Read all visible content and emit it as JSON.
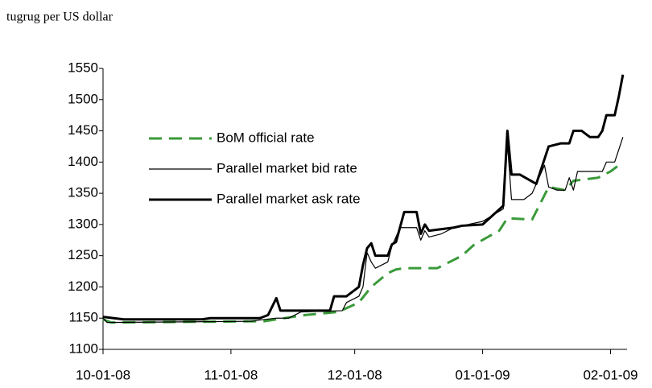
{
  "chart_data": {
    "type": "line",
    "title": "tugrug per US dollar",
    "xlim": [
      "10-01-08",
      "02-05-09"
    ],
    "xticks": [
      "10-01-08",
      "11-01-08",
      "12-01-08",
      "01-01-09",
      "02-01-09"
    ],
    "ylim": [
      1100,
      1550
    ],
    "yticks": [
      1100,
      1150,
      1200,
      1250,
      1300,
      1350,
      1400,
      1450,
      1500,
      1550
    ],
    "legend": "upper left",
    "series": [
      {
        "name": "BoM official rate",
        "color": "#3a9a3a",
        "dash": true,
        "width": 3,
        "x": [
          "10-01-08",
          "10-03-08",
          "11-09-08",
          "11-19-08",
          "11-27-08",
          "12-02-08",
          "12-05-08",
          "12-09-08",
          "12-11-08",
          "12-13-08",
          "12-21-08",
          "12-24-08",
          "12-27-08",
          "12-30-08",
          "01-05-09",
          "01-07-09",
          "01-13-09",
          "01-17-09",
          "01-21-09",
          "01-23-09",
          "01-29-09",
          "02-01-09",
          "02-04-09"
        ],
        "values": [
          1148,
          1143,
          1145,
          1155,
          1160,
          1175,
          1200,
          1222,
          1228,
          1230,
          1230,
          1240,
          1250,
          1268,
          1290,
          1310,
          1308,
          1360,
          1355,
          1370,
          1375,
          1385,
          1400
        ]
      },
      {
        "name": "Parallel market bid rate",
        "color": "#000000",
        "dash": false,
        "width": 1.2,
        "x": [
          "10-01-08",
          "10-02-08",
          "11-06-08",
          "11-08-08",
          "11-12-08",
          "11-15-08",
          "11-18-08",
          "11-28-08",
          "11-29-08",
          "12-02-08",
          "12-03-08",
          "12-04-08",
          "12-05-08",
          "12-06-08",
          "12-09-08",
          "12-10-08",
          "12-12-08",
          "12-16-08",
          "12-17-08",
          "12-18-08",
          "12-19-08",
          "12-22-08",
          "12-25-08",
          "01-01-09",
          "01-06-09",
          "01-07-09",
          "01-08-09",
          "01-11-09",
          "01-13-09",
          "01-16-09",
          "01-17-09",
          "01-19-09",
          "01-21-09",
          "01-22-09",
          "01-23-09",
          "01-24-09",
          "01-30-09",
          "01-31-09",
          "02-02-09",
          "02-04-09"
        ],
        "values": [
          1150,
          1143,
          1145,
          1147,
          1150,
          1150,
          1160,
          1162,
          1175,
          1185,
          1200,
          1255,
          1240,
          1230,
          1240,
          1265,
          1295,
          1295,
          1275,
          1290,
          1280,
          1285,
          1295,
          1305,
          1325,
          1430,
          1340,
          1340,
          1350,
          1395,
          1360,
          1355,
          1355,
          1375,
          1355,
          1385,
          1385,
          1400,
          1400,
          1440
        ]
      },
      {
        "name": "Parallel market ask rate",
        "color": "#000000",
        "dash": false,
        "width": 3,
        "x": [
          "10-01-08",
          "10-06-08",
          "10-25-08",
          "10-27-08",
          "11-08-08",
          "11-10-08",
          "11-12-08",
          "11-13-08",
          "11-25-08",
          "11-26-08",
          "11-29-08",
          "12-02-08",
          "12-03-08",
          "12-04-08",
          "12-05-08",
          "12-06-08",
          "12-09-08",
          "12-10-08",
          "12-11-08",
          "12-13-08",
          "12-16-08",
          "12-17-08",
          "12-18-08",
          "12-19-08",
          "12-25-08",
          "12-27-08",
          "01-01-09",
          "01-06-09",
          "01-07-09",
          "01-08-09",
          "01-10-09",
          "01-14-09",
          "01-17-09",
          "01-20-09",
          "01-22-09",
          "01-23-09",
          "01-25-09",
          "01-27-09",
          "01-29-09",
          "01-30-09",
          "01-31-09",
          "02-02-09",
          "02-03-09",
          "02-04-09"
        ],
        "values": [
          1152,
          1148,
          1148,
          1150,
          1150,
          1155,
          1182,
          1162,
          1162,
          1185,
          1185,
          1200,
          1235,
          1262,
          1270,
          1250,
          1250,
          1268,
          1272,
          1320,
          1320,
          1285,
          1300,
          1290,
          1295,
          1298,
          1300,
          1330,
          1450,
          1380,
          1380,
          1365,
          1425,
          1430,
          1430,
          1450,
          1450,
          1440,
          1440,
          1450,
          1475,
          1475,
          1505,
          1540
        ]
      }
    ]
  }
}
